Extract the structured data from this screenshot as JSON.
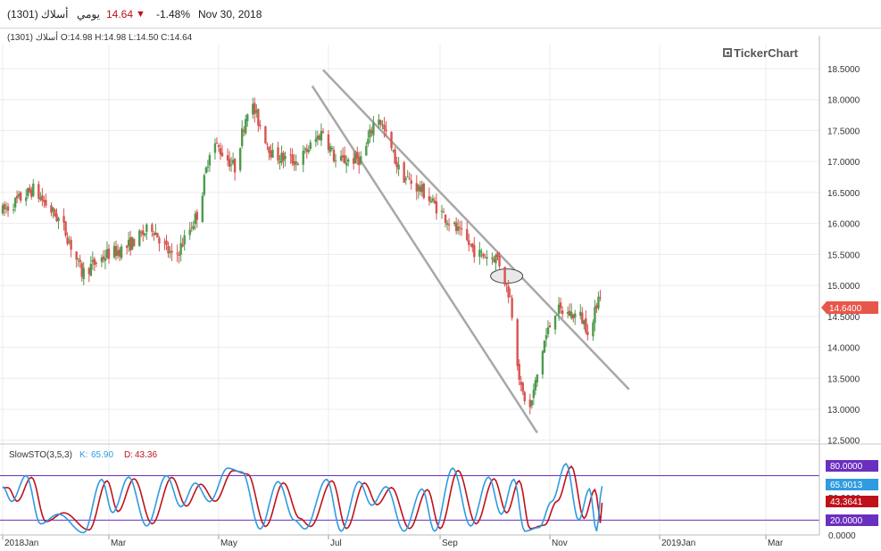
{
  "header": {
    "symbol_name": "أسلاك (1301)",
    "period": "يومي",
    "last_price": "14.64",
    "change_pct": "-1.48%",
    "date": "Nov 30, 2018"
  },
  "ohlc_label": "أسلاك (1301)  O:14.98  H:14.98  L:14.50  C:14.64",
  "brand": "TickerChart",
  "colors": {
    "up": "#4e9a4e",
    "down": "#d9534f",
    "price_badge": "#e8564a",
    "k_line": "#2f9be0",
    "d_line": "#c0111a",
    "level_line": "#6a2fbf",
    "trendline": "#a8a8a8",
    "grid": "#ececec"
  },
  "chart_data": [
    {
      "type": "candlestick",
      "title": "",
      "x_tick_labels": [
        "2018Jan",
        "Mar",
        "May",
        "Jul",
        "Sep",
        "Nov",
        "2019Jan",
        "Mar"
      ],
      "y_tick_labels": [
        "18.5000",
        "18.0000",
        "17.5000",
        "17.0000",
        "16.5000",
        "16.0000",
        "15.5000",
        "15.0000",
        "14.5000",
        "14.0000",
        "13.5000",
        "13.0000",
        "12.5000"
      ],
      "ylim": [
        12.4,
        18.95
      ],
      "last_value_label": "14.6400",
      "close_path": [
        {
          "date": "2018-01-01",
          "close": 16.2
        },
        {
          "date": "2018-01-18",
          "close": 16.55
        },
        {
          "date": "2018-02-03",
          "close": 16.0
        },
        {
          "date": "2018-02-14",
          "close": 15.2
        },
        {
          "date": "2018-02-28",
          "close": 15.5
        },
        {
          "date": "2018-03-10",
          "close": 15.6
        },
        {
          "date": "2018-03-25",
          "close": 15.95
        },
        {
          "date": "2018-04-06",
          "close": 15.4
        },
        {
          "date": "2018-04-20",
          "close": 16.2
        },
        {
          "date": "2018-04-27",
          "close": 17.35
        },
        {
          "date": "2018-05-10",
          "close": 16.9
        },
        {
          "date": "2018-05-18",
          "close": 18.0
        },
        {
          "date": "2018-05-31",
          "close": 17.1
        },
        {
          "date": "2018-06-14",
          "close": 17.0
        },
        {
          "date": "2018-06-28",
          "close": 17.5
        },
        {
          "date": "2018-07-05",
          "close": 17.0
        },
        {
          "date": "2018-07-20",
          "close": 17.05
        },
        {
          "date": "2018-07-28",
          "close": 17.8
        },
        {
          "date": "2018-08-10",
          "close": 16.8
        },
        {
          "date": "2018-08-23",
          "close": 16.5
        },
        {
          "date": "2018-09-07",
          "close": 16.0
        },
        {
          "date": "2018-09-22",
          "close": 15.5
        },
        {
          "date": "2018-10-03",
          "close": 15.45
        },
        {
          "date": "2018-10-10",
          "close": 14.8
        },
        {
          "date": "2018-10-16",
          "close": 13.3
        },
        {
          "date": "2018-10-21",
          "close": 13.0
        },
        {
          "date": "2018-10-29",
          "close": 14.1
        },
        {
          "date": "2018-11-04",
          "close": 14.6
        },
        {
          "date": "2018-11-18",
          "close": 14.5
        },
        {
          "date": "2018-11-24",
          "close": 14.2
        },
        {
          "date": "2018-11-28",
          "close": 14.9
        },
        {
          "date": "2018-11-30",
          "close": 14.64
        }
      ],
      "trendlines": [
        {
          "x1": "2018-06-28",
          "y1": 18.48,
          "x2": "2018-12-15",
          "y2": 13.32
        },
        {
          "x1": "2018-06-22",
          "y1": 18.22,
          "x2": "2018-10-25",
          "y2": 12.62
        }
      ],
      "ellipse": {
        "date": "2018-10-08",
        "value": 15.15
      }
    },
    {
      "type": "line",
      "title": "SlowSTO(3,5,3)",
      "series": [
        {
          "name": "K",
          "value_label": "65.90",
          "badge": "65.9013"
        },
        {
          "name": "D",
          "value_label": "43.36",
          "badge": "43.3641"
        }
      ],
      "levels": [
        "80.0000",
        "20.0000"
      ],
      "y_tick_labels": [
        "80.0000",
        "50.0000",
        "0.0000"
      ],
      "ylim": [
        0,
        100
      ],
      "k_points": [
        {
          "date": "2018-01-01",
          "value": 65
        },
        {
          "date": "2018-01-06",
          "value": 45
        },
        {
          "date": "2018-01-14",
          "value": 80
        },
        {
          "date": "2018-01-22",
          "value": 15
        },
        {
          "date": "2018-02-01",
          "value": 28
        },
        {
          "date": "2018-02-15",
          "value": 3
        },
        {
          "date": "2018-02-25",
          "value": 75
        },
        {
          "date": "2018-03-03",
          "value": 30
        },
        {
          "date": "2018-03-12",
          "value": 78
        },
        {
          "date": "2018-03-22",
          "value": 12
        },
        {
          "date": "2018-04-02",
          "value": 80
        },
        {
          "date": "2018-04-10",
          "value": 38
        },
        {
          "date": "2018-04-18",
          "value": 70
        },
        {
          "date": "2018-04-26",
          "value": 45
        },
        {
          "date": "2018-05-06",
          "value": 90
        },
        {
          "date": "2018-05-14",
          "value": 85
        },
        {
          "date": "2018-05-24",
          "value": 8
        },
        {
          "date": "2018-06-03",
          "value": 72
        },
        {
          "date": "2018-06-12",
          "value": 20
        },
        {
          "date": "2018-06-18",
          "value": 8
        },
        {
          "date": "2018-06-30",
          "value": 75
        },
        {
          "date": "2018-07-08",
          "value": 5
        },
        {
          "date": "2018-07-18",
          "value": 72
        },
        {
          "date": "2018-07-25",
          "value": 40
        },
        {
          "date": "2018-08-02",
          "value": 65
        },
        {
          "date": "2018-08-12",
          "value": 5
        },
        {
          "date": "2018-08-22",
          "value": 62
        },
        {
          "date": "2018-08-29",
          "value": 5
        },
        {
          "date": "2018-09-08",
          "value": 90
        },
        {
          "date": "2018-09-18",
          "value": 12
        },
        {
          "date": "2018-09-28",
          "value": 78
        },
        {
          "date": "2018-10-05",
          "value": 28
        },
        {
          "date": "2018-10-12",
          "value": 75
        },
        {
          "date": "2018-10-18",
          "value": 5
        },
        {
          "date": "2018-10-26",
          "value": 10
        },
        {
          "date": "2018-11-02",
          "value": 45
        },
        {
          "date": "2018-11-10",
          "value": 96
        },
        {
          "date": "2018-11-17",
          "value": 20
        },
        {
          "date": "2018-11-23",
          "value": 62
        },
        {
          "date": "2018-11-27",
          "value": 5
        },
        {
          "date": "2018-11-30",
          "value": 65.9
        }
      ]
    }
  ]
}
